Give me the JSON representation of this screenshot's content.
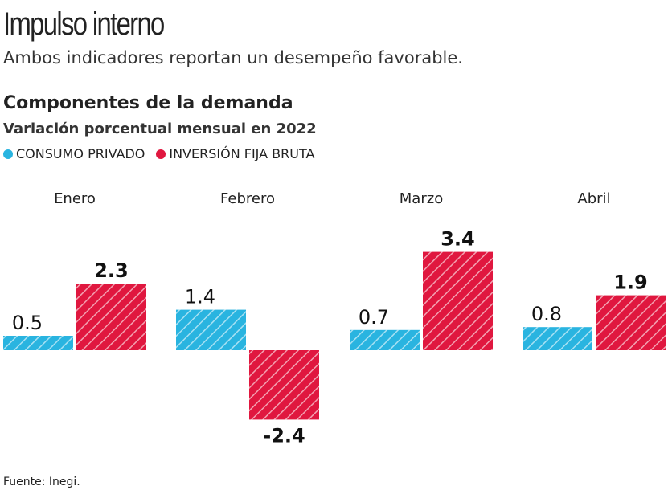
{
  "title": "Impulso interno",
  "subtitle": "Ambos indicadores reportan un desempeño favorable.",
  "source": "Fuente: Inegi.",
  "chart_data": {
    "type": "bar",
    "title": "Componentes de la demanda",
    "subtitle": "Variación porcentual mensual en 2022",
    "categories": [
      "Enero",
      "Febrero",
      "Marzo",
      "Abril"
    ],
    "series": [
      {
        "name": "CONSUMO PRIVADO",
        "color": "#29b4e0",
        "values": [
          0.5,
          1.4,
          0.7,
          0.8
        ],
        "labels": [
          "0.5",
          "1.4",
          "0.7",
          "0.8"
        ]
      },
      {
        "name": "INVERSIÓN FIJA BRUTA",
        "color": "#e0173f",
        "values": [
          2.3,
          -2.4,
          3.4,
          1.9
        ],
        "labels": [
          "2.3",
          "-2.4",
          "3.4",
          "1.9"
        ]
      }
    ],
    "legend": "top-left",
    "grid": false,
    "pattern": "diagonal-hatch"
  }
}
